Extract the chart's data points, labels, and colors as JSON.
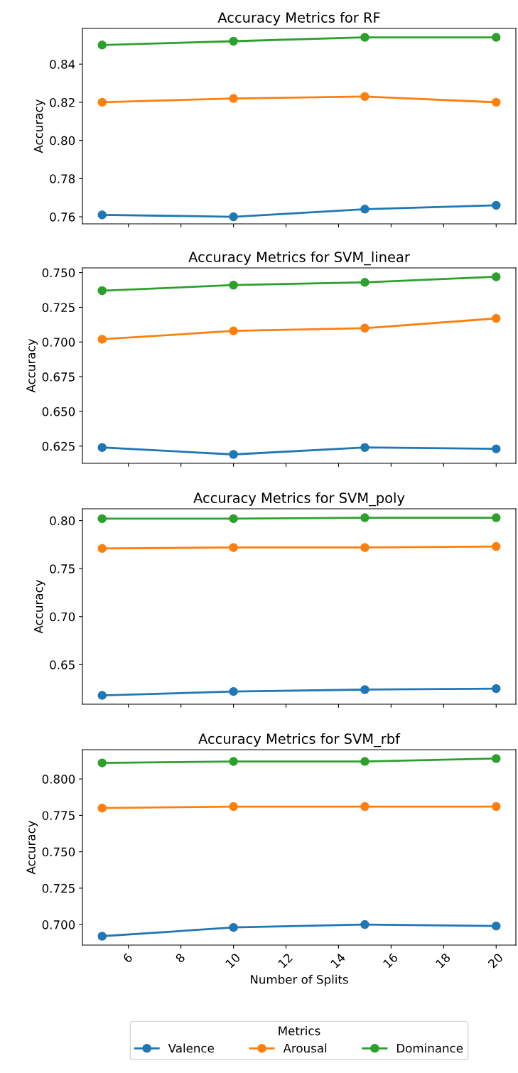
{
  "chart_data": [
    {
      "type": "line",
      "title": "Accuracy Metrics for RF",
      "ylabel": "Accuracy",
      "x": [
        5,
        10,
        15,
        20
      ],
      "xlim": [
        4.25,
        20.75
      ],
      "xticks": [
        6,
        8,
        10,
        12,
        14,
        16,
        18,
        20
      ],
      "ylim": [
        0.7563,
        0.8587
      ],
      "yticks": [
        0.76,
        0.78,
        {
          "value": 0.8,
          "label": "0.80"
        },
        0.82,
        0.84
      ],
      "tick_labels": "y",
      "marker": "circle",
      "line_style": "solid",
      "grid": false,
      "series": [
        {
          "color": "#1f77b4",
          "values": [
            0.761,
            0.76,
            0.764,
            0.766
          ]
        },
        {
          "color": "#ff7f0e",
          "values": [
            0.82,
            0.822,
            0.823,
            0.82
          ]
        },
        {
          "color": "#2ca02c",
          "values": [
            0.85,
            0.852,
            0.854,
            0.854
          ]
        }
      ]
    },
    {
      "type": "line",
      "title": "Accuracy Metrics for SVM_linear",
      "ylabel": "Accuracy",
      "x": [
        5,
        10,
        15,
        20
      ],
      "xlim": [
        4.25,
        20.75
      ],
      "xticks": [
        6,
        8,
        10,
        12,
        14,
        16,
        18,
        20
      ],
      "ylim": [
        0.6126,
        0.7534
      ],
      "yticks": [
        0.625,
        {
          "value": 0.65,
          "label": "0.650"
        },
        0.675,
        {
          "value": 0.7,
          "label": "0.700"
        },
        0.725,
        {
          "value": 0.75,
          "label": "0.750"
        }
      ],
      "tick_labels": "y",
      "marker": "circle",
      "line_style": "solid",
      "grid": false,
      "series": [
        {
          "color": "#1f77b4",
          "values": [
            0.624,
            0.619,
            0.624,
            0.623
          ]
        },
        {
          "color": "#ff7f0e",
          "values": [
            0.702,
            0.708,
            0.71,
            0.717
          ]
        },
        {
          "color": "#2ca02c",
          "values": [
            0.737,
            0.741,
            0.743,
            0.747
          ]
        }
      ]
    },
    {
      "type": "line",
      "title": "Accuracy Metrics for SVM_poly",
      "ylabel": "Accuracy",
      "x": [
        5,
        10,
        15,
        20
      ],
      "xlim": [
        4.25,
        20.75
      ],
      "xticks": [
        6,
        8,
        10,
        12,
        14,
        16,
        18,
        20
      ],
      "ylim": [
        0.6088,
        0.8123
      ],
      "yticks": [
        {
          "value": 0.65,
          "label": "0.65"
        },
        {
          "value": 0.7,
          "label": "0.70"
        },
        {
          "value": 0.75,
          "label": "0.75"
        },
        {
          "value": 0.8,
          "label": "0.80"
        }
      ],
      "tick_labels": "y",
      "marker": "circle",
      "line_style": "solid",
      "grid": false,
      "series": [
        {
          "color": "#1f77b4",
          "values": [
            0.618,
            0.622,
            0.624,
            0.625
          ]
        },
        {
          "color": "#ff7f0e",
          "values": [
            0.771,
            0.772,
            0.772,
            0.773
          ]
        },
        {
          "color": "#2ca02c",
          "values": [
            0.802,
            0.802,
            0.803,
            0.803
          ]
        }
      ]
    },
    {
      "type": "line",
      "title": "Accuracy Metrics for SVM_rbf",
      "xlabel": "Number of Splits",
      "ylabel": "Accuracy",
      "legend_title": "Metrics",
      "x": [
        5,
        10,
        15,
        20
      ],
      "xlim": [
        4.25,
        20.75
      ],
      "xticks": [
        6,
        8,
        10,
        12,
        14,
        16,
        18,
        20
      ],
      "ylim": [
        0.6859,
        0.8201
      ],
      "yticks": [
        {
          "value": 0.7,
          "label": "0.700"
        },
        {
          "value": 0.725,
          "label": "0.725"
        },
        {
          "value": 0.75,
          "label": "0.750"
        },
        {
          "value": 0.775,
          "label": "0.775"
        },
        {
          "value": 0.8,
          "label": "0.800"
        }
      ],
      "marker": "circle",
      "line_style": "solid",
      "grid": false,
      "legend": "bottom",
      "series": [
        {
          "name": "Valence",
          "color": "#1f77b4",
          "values": [
            0.692,
            0.698,
            0.7,
            0.699
          ]
        },
        {
          "name": "Arousal",
          "color": "#ff7f0e",
          "values": [
            0.78,
            0.781,
            0.781,
            0.781
          ]
        },
        {
          "name": "Dominance",
          "color": "#2ca02c",
          "values": [
            0.811,
            0.812,
            0.812,
            0.814
          ]
        }
      ]
    }
  ]
}
